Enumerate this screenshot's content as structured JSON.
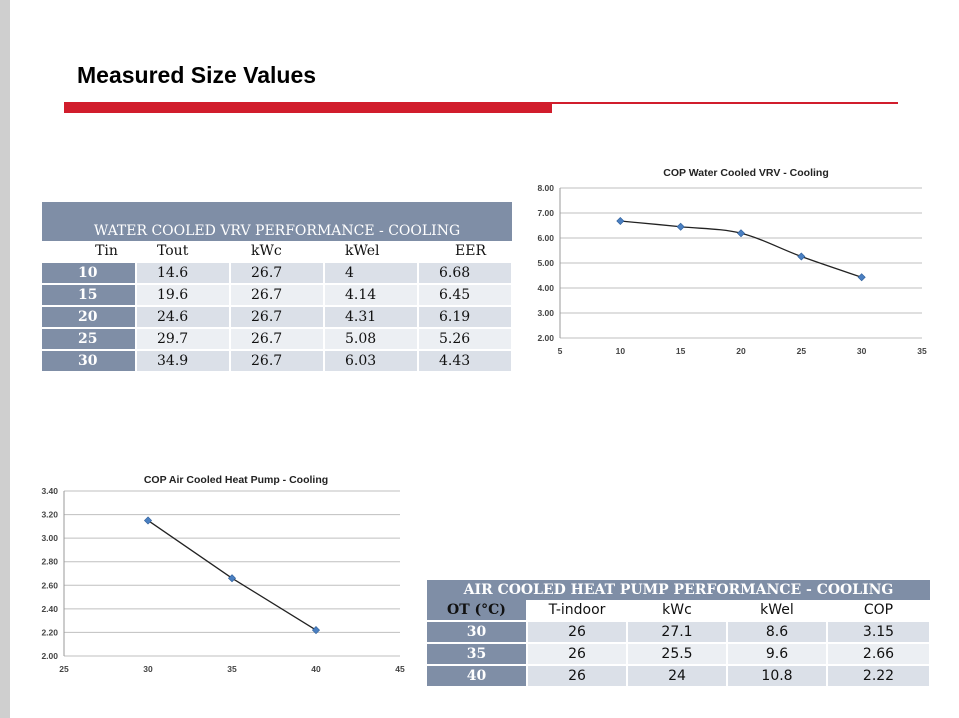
{
  "title": "Measured Size Values",
  "tables": {
    "water": {
      "caption": "WATER COOLED VRV PERFORMANCE - COOLING",
      "headers": [
        "Tin",
        "Tout",
        "kWc",
        "kWel",
        "EER"
      ],
      "rows": [
        [
          "10",
          "14.6",
          "26.7",
          "4",
          "6.68"
        ],
        [
          "15",
          "19.6",
          "26.7",
          "4.14",
          "6.45"
        ],
        [
          "20",
          "24.6",
          "26.7",
          "4.31",
          "6.19"
        ],
        [
          "25",
          "29.7",
          "26.7",
          "5.08",
          "5.26"
        ],
        [
          "30",
          "34.9",
          "26.7",
          "6.03",
          "4.43"
        ]
      ]
    },
    "air": {
      "caption": "AIR COOLED HEAT PUMP PERFORMANCE - COOLING",
      "headers": [
        "OT (°C)",
        "T-indoor",
        "kWc",
        "kWel",
        "COP"
      ],
      "rows": [
        [
          "30",
          "26",
          "27.1",
          "8.6",
          "3.15"
        ],
        [
          "35",
          "26",
          "25.5",
          "9.6",
          "2.66"
        ],
        [
          "40",
          "26",
          "24",
          "10.8",
          "2.22"
        ]
      ]
    }
  },
  "chart_data": [
    {
      "type": "line",
      "title": "COP Water Cooled VRV - Cooling",
      "x": [
        10,
        15,
        20,
        25,
        30
      ],
      "y": [
        6.68,
        6.45,
        6.19,
        5.26,
        4.43
      ],
      "xlim": [
        5,
        35
      ],
      "ylim": [
        2,
        8
      ],
      "xticks": [
        5,
        10,
        15,
        20,
        25,
        30,
        35
      ],
      "yticks": [
        2,
        3,
        4,
        5,
        6,
        7,
        8
      ],
      "ytick_labels": [
        "2.00",
        "3.00",
        "4.00",
        "5.00",
        "6.00",
        "7.00",
        "8.00"
      ],
      "grid": true,
      "smooth": true,
      "colors": {
        "line": "#222222",
        "marker": "#4a7fc1",
        "grid": "#bfbfbf"
      }
    },
    {
      "type": "line",
      "title": "COP Air Cooled Heat Pump - Cooling",
      "x": [
        30,
        35,
        40
      ],
      "y": [
        3.15,
        2.66,
        2.22
      ],
      "xlim": [
        25,
        45
      ],
      "ylim": [
        2,
        3.4
      ],
      "xticks": [
        25,
        30,
        35,
        40,
        45
      ],
      "yticks": [
        2.0,
        2.2,
        2.4,
        2.6,
        2.8,
        3.0,
        3.2,
        3.4
      ],
      "ytick_labels": [
        "2.00",
        "2.20",
        "2.40",
        "2.60",
        "2.80",
        "3.00",
        "3.20",
        "3.40"
      ],
      "grid": true,
      "smooth": false,
      "colors": {
        "line": "#222222",
        "marker": "#4a7fc1",
        "grid": "#bfbfbf"
      }
    }
  ]
}
